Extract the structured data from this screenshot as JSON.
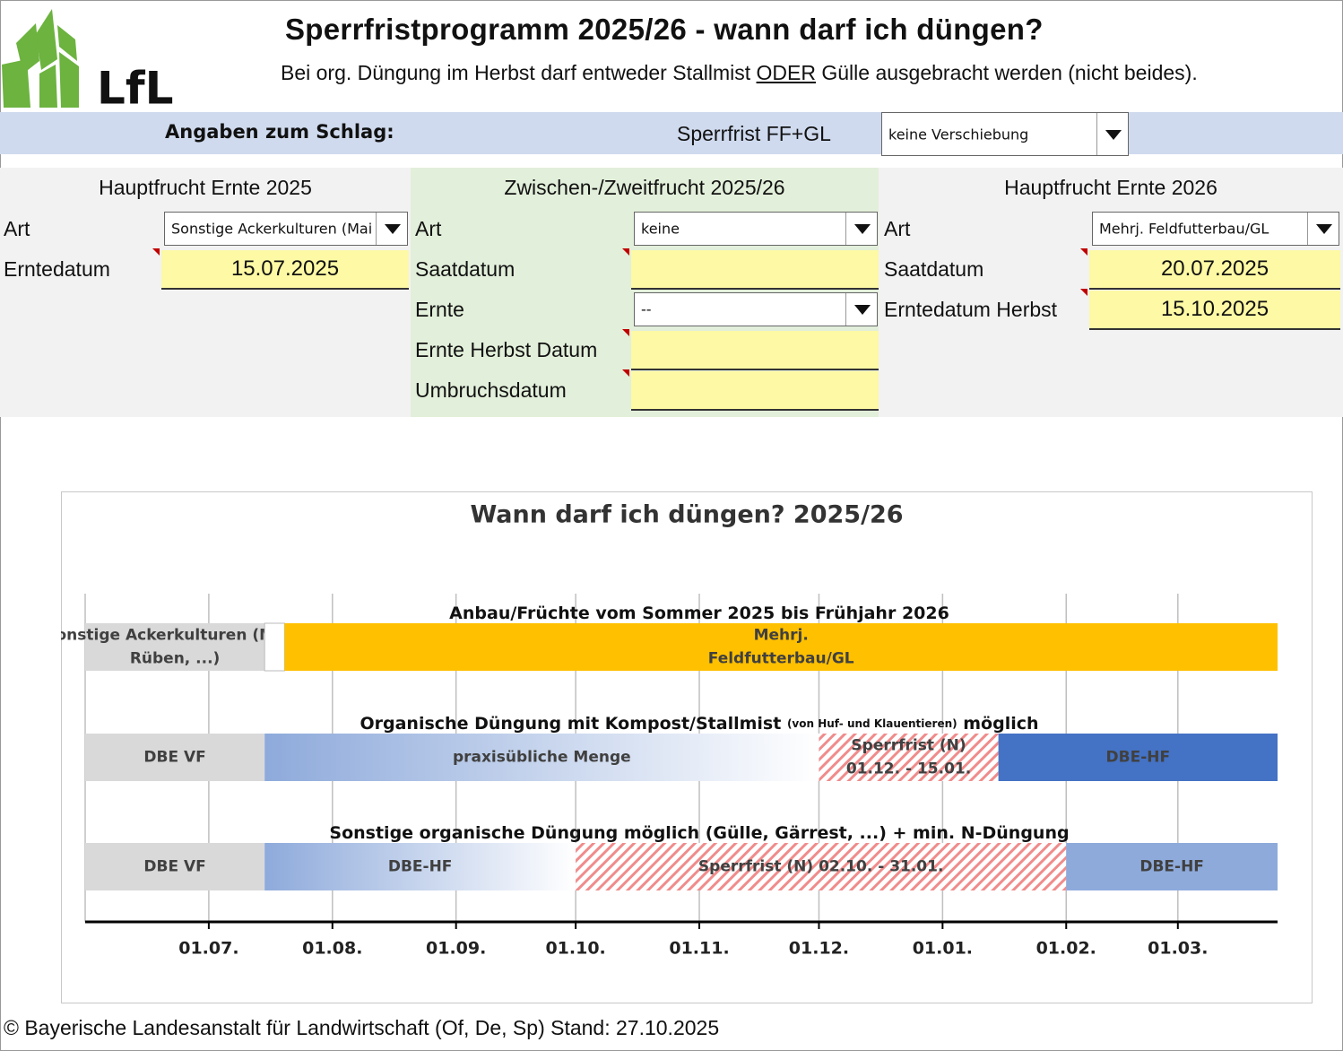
{
  "header": {
    "logo_text": "LfL",
    "title": "Sperrfristprogramm 2025/26 - wann darf ich düngen?",
    "subtitle_parts": [
      "Bei org. Düngung im Herbst darf entweder Stallmist ",
      "ODER",
      " Gülle ausgebracht werden (nicht beides)."
    ]
  },
  "settings_bar": {
    "label": "Angaben zum Schlag:",
    "sperrfrist_label": "Sperrfrist FF+GL",
    "sperrfrist_value": "keine Verschiebung"
  },
  "columns": [
    {
      "title": "Hauptfrucht Ernte 2025",
      "fields": [
        {
          "label": "Art",
          "kind": "dropdown",
          "value": "Sonstige Ackerkulturen (Mai"
        },
        {
          "label": "Erntedatum",
          "kind": "date",
          "value": "15.07.2025"
        }
      ]
    },
    {
      "title": "Zwischen-/Zweitfrucht 2025/26",
      "fields": [
        {
          "label": "Art",
          "kind": "dropdown",
          "value": "keine"
        },
        {
          "label": "Saatdatum",
          "kind": "date"
        },
        {
          "label": "Ernte",
          "kind": "dropdown",
          "value": "--"
        },
        {
          "label": "Ernte Herbst Datum",
          "kind": "date"
        },
        {
          "label": "Umbruchsdatum",
          "kind": "date"
        }
      ]
    },
    {
      "title": "Hauptfrucht Ernte 2026",
      "fields": [
        {
          "label": "Art",
          "kind": "dropdown",
          "value": "Mehrj. Feldfutterbau/GL"
        },
        {
          "label": "Saatdatum",
          "kind": "date",
          "value": "20.07.2025"
        },
        {
          "label": "Erntedatum Herbst",
          "kind": "date",
          "value": "15.10.2025"
        }
      ]
    }
  ],
  "chart_data": {
    "type": "gantt",
    "title": "Wann darf ich düngen? 2025/26",
    "xlim": [
      -31,
      268
    ],
    "xticks": [
      {
        "value": 0,
        "label": "01.07."
      },
      {
        "value": 31,
        "label": "01.08."
      },
      {
        "value": 62,
        "label": "01.09."
      },
      {
        "value": 92,
        "label": "01.10."
      },
      {
        "value": 123,
        "label": "01.11."
      },
      {
        "value": 153,
        "label": "01.12."
      },
      {
        "value": 184,
        "label": "01.01."
      },
      {
        "value": 215,
        "label": "01.02."
      },
      {
        "value": 243,
        "label": "01.03."
      }
    ],
    "grid": true,
    "rows": [
      {
        "title_parts": [
          {
            "text": "Anbau/Früchte vom Sommer 2025 bis Frühjahr 2026"
          }
        ],
        "bars": [
          {
            "start": -31,
            "end": 14,
            "color": "#d9d9d9",
            "label_lines": [
              "Sonstige Ackerkulturen (Mais,",
              "Rüben, ...)"
            ]
          },
          {
            "start": 14,
            "end": 19,
            "color": "#ffffff"
          },
          {
            "start": 19,
            "end": 268,
            "color": "#ffc000",
            "label_lines": [
              "Mehrj.",
              "Feldfutterbau/GL"
            ]
          }
        ]
      },
      {
        "title_parts": [
          {
            "text": "Organische Düngung mit Kompost/Stallmist "
          },
          {
            "text": "(von Huf- und Klauentieren)",
            "small": true
          },
          {
            "text": " möglich"
          }
        ],
        "bars": [
          {
            "start": -31,
            "end": 14,
            "color": "#d9d9d9",
            "label_lines": [
              "DBE VF"
            ]
          },
          {
            "start": 14,
            "end": 153,
            "color": "#8eaadb",
            "pattern": "gradient",
            "label_lines": [
              "praxisübliche Menge"
            ]
          },
          {
            "start": 153,
            "end": 198,
            "color": "#f4b6b6",
            "pattern": "hatch",
            "label_lines": [
              "Sperrfrist (N)",
              "01.12. - 15.01."
            ]
          },
          {
            "start": 198,
            "end": 268,
            "color": "#4472c4",
            "label_lines": [
              "DBE-HF"
            ]
          }
        ]
      },
      {
        "title_parts": [
          {
            "text": "Sonstige organische Düngung möglich (Gülle, Gärrest, ...) + min. N-Düngung"
          }
        ],
        "bars": [
          {
            "start": -31,
            "end": 14,
            "color": "#d9d9d9",
            "label_lines": [
              "DBE VF"
            ]
          },
          {
            "start": 14,
            "end": 92,
            "color": "#8eaadb",
            "pattern": "gradient",
            "label_lines": [
              "DBE-HF"
            ]
          },
          {
            "start": 92,
            "end": 215,
            "color": "#f4b6b6",
            "pattern": "hatch",
            "label_lines": [
              "Sperrfrist (N) 02.10. - 31.01."
            ]
          },
          {
            "start": 215,
            "end": 268,
            "color": "#8eaadb",
            "label_lines": [
              "DBE-HF"
            ]
          }
        ]
      }
    ]
  },
  "footer": "© Bayerische Landesanstalt für Landwirtschaft (Of, De, Sp) Stand: 27.10.2025"
}
